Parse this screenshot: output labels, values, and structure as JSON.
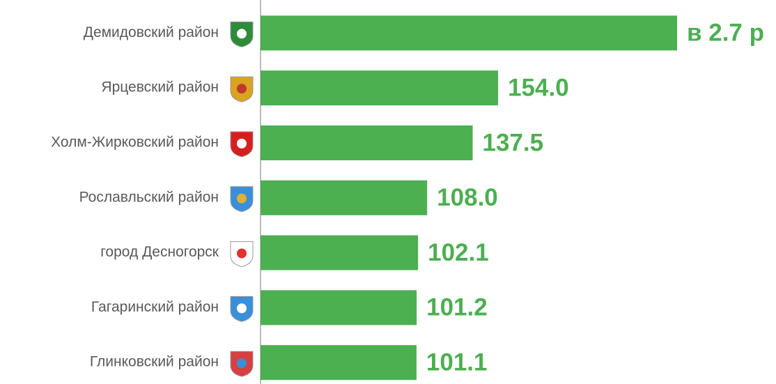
{
  "chart_data": {
    "type": "barh",
    "categories": [
      "Демидовский район",
      "Ярцевский район",
      "Холм-Жирковский район",
      "Рославльский район",
      "город Десногорск",
      "Гагаринский район",
      "Глинковский район"
    ],
    "values": [
      270,
      154.0,
      137.5,
      108.0,
      102.1,
      101.2,
      101.1
    ],
    "value_labels": [
      "в 2.7 р",
      "154.0",
      "137.5",
      "108.0",
      "102.1",
      "101.2",
      "101.1"
    ],
    "color": "#4caf50",
    "xlim": [
      0,
      270
    ]
  }
}
